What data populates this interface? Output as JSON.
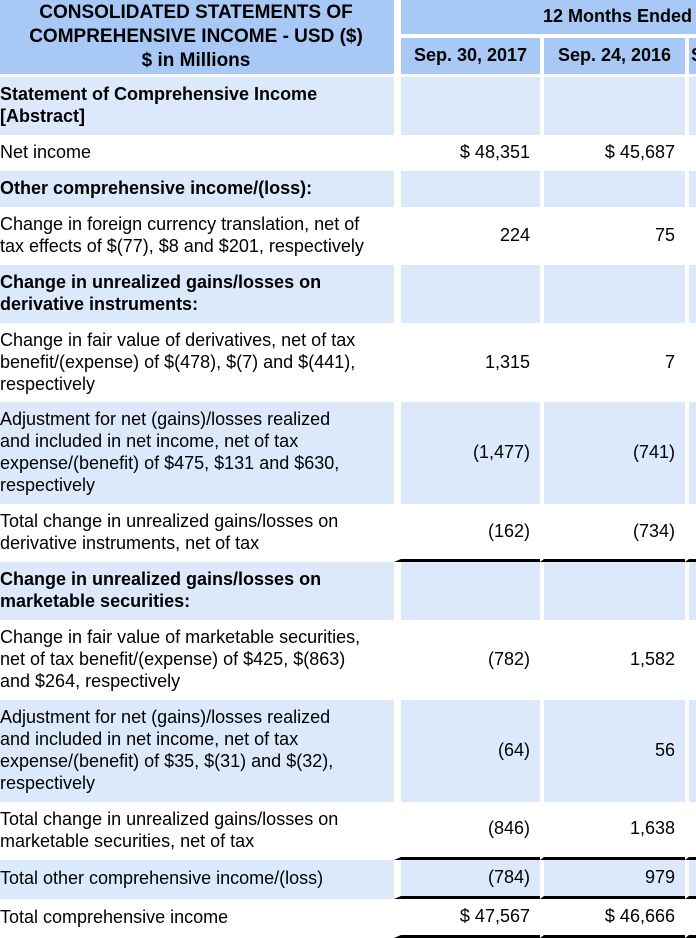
{
  "document": {
    "title": "CONSOLIDATED STATEMENTS OF COMPREHENSIVE INCOME - USD ($)",
    "subtitle": "$ in Millions",
    "period_header": "12 Months Ended",
    "columns": [
      "Sep. 30, 2017",
      "Sep. 24, 2016",
      "S"
    ],
    "colors": {
      "header_bg": "#a8c9f6",
      "stripe_bg": "#dce9fb",
      "text": "#000000",
      "total_rule": "#000000",
      "cutoff_strip": "#bdd5f3"
    },
    "rows": [
      {
        "label": "Statement of Comprehensive Income [Abstract]",
        "type": "section",
        "values": [
          "",
          ""
        ]
      },
      {
        "label": "Net income",
        "type": "data",
        "values": [
          "$ 48,351",
          "$ 45,687"
        ]
      },
      {
        "label": "Other comprehensive income/(loss):",
        "type": "section",
        "values": [
          "",
          ""
        ]
      },
      {
        "label": "Change in foreign currency translation, net of tax effects of $(77), $8 and $201, respectively",
        "type": "data",
        "values": [
          "224",
          "75"
        ]
      },
      {
        "label": "Change in unrealized gains/losses on derivative instruments:",
        "type": "section",
        "values": [
          "",
          ""
        ]
      },
      {
        "label": "Change in fair value of derivatives, net of tax benefit/(expense) of $(478), $(7) and $(441), respectively",
        "type": "data",
        "values": [
          "1,315",
          "7"
        ]
      },
      {
        "label": "Adjustment for net (gains)/losses realized and included in net income, net of tax expense/(benefit) of $475, $131 and $630, respectively",
        "type": "data",
        "values": [
          "(1,477)",
          "(741)"
        ]
      },
      {
        "label": "Total change in unrealized gains/losses on derivative instruments, net of tax",
        "type": "total",
        "values": [
          "(162)",
          "(734)"
        ]
      },
      {
        "label": "Change in unrealized gains/losses on marketable securities:",
        "type": "section",
        "values": [
          "",
          ""
        ]
      },
      {
        "label": "Change in fair value of marketable securities, net of tax benefit/(expense) of $425, $(863) and $264, respectively",
        "type": "data",
        "values": [
          "(782)",
          "1,582"
        ]
      },
      {
        "label": "Adjustment for net (gains)/losses realized and included in net income, net of tax expense/(benefit) of $35, $(31) and $(32), respectively",
        "type": "data",
        "values": [
          "(64)",
          "56"
        ]
      },
      {
        "label": "Total change in unrealized gains/losses on marketable securities, net of tax",
        "type": "total",
        "values": [
          "(846)",
          "1,638"
        ]
      },
      {
        "label": "Total other comprehensive income/(loss)",
        "type": "total",
        "values": [
          "(784)",
          "979"
        ]
      },
      {
        "label": "Total comprehensive income",
        "type": "total",
        "values": [
          "$ 47,567",
          "$ 46,666"
        ]
      }
    ]
  }
}
